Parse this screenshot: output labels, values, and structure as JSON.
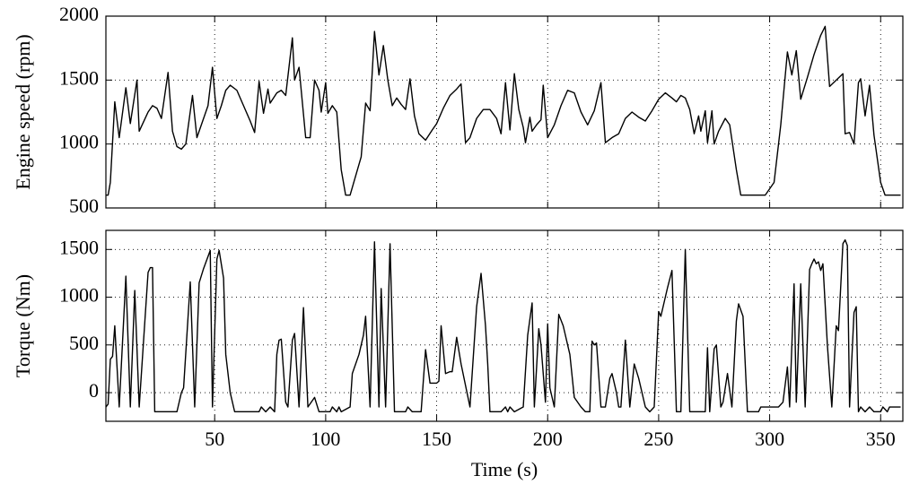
{
  "chart_data": [
    {
      "type": "line",
      "ylabel": "Engine speed (rpm)",
      "x": [
        1,
        2,
        3,
        5,
        7,
        10,
        12,
        15,
        16,
        20,
        22,
        24,
        26,
        29,
        31,
        33,
        35,
        37,
        40,
        42,
        44,
        47,
        49,
        51,
        53,
        55,
        57,
        60,
        63,
        66,
        68,
        70,
        72,
        74,
        75,
        78,
        80,
        82,
        85,
        86,
        88,
        91,
        93,
        95,
        97,
        98,
        100,
        101,
        103,
        105,
        107,
        109,
        111,
        113,
        116,
        118,
        120,
        122,
        124,
        126,
        128,
        130,
        132,
        134,
        136,
        138,
        140,
        142,
        145,
        148,
        150,
        153,
        156,
        159,
        161,
        163,
        165,
        168,
        171,
        174,
        177,
        179,
        181,
        183,
        185,
        187,
        189,
        190,
        192,
        193,
        195,
        197,
        198,
        200,
        203,
        206,
        209,
        212,
        215,
        218,
        221,
        224,
        226,
        229,
        232,
        235,
        238,
        241,
        244,
        247,
        250,
        253,
        256,
        258,
        260,
        262,
        264,
        266,
        268,
        269,
        271,
        272,
        274,
        275,
        277,
        280,
        282,
        285,
        287,
        292,
        298,
        302,
        305,
        308,
        310,
        312,
        314,
        317,
        320,
        323,
        325,
        327,
        333,
        334,
        336,
        338,
        340,
        341,
        343,
        345,
        347,
        350,
        352,
        359
      ],
      "values": [
        600,
        600,
        700,
        1330,
        1050,
        1440,
        1160,
        1500,
        1100,
        1250,
        1300,
        1280,
        1200,
        1560,
        1100,
        980,
        960,
        1000,
        1380,
        1050,
        1150,
        1300,
        1600,
        1200,
        1300,
        1420,
        1460,
        1420,
        1300,
        1180,
        1090,
        1490,
        1240,
        1430,
        1320,
        1400,
        1420,
        1380,
        1830,
        1500,
        1600,
        1050,
        1050,
        1500,
        1420,
        1250,
        1480,
        1240,
        1300,
        1250,
        800,
        600,
        600,
        720,
        900,
        1320,
        1260,
        1880,
        1540,
        1770,
        1500,
        1300,
        1360,
        1310,
        1270,
        1510,
        1220,
        1080,
        1030,
        1110,
        1160,
        1280,
        1380,
        1430,
        1470,
        1010,
        1050,
        1200,
        1270,
        1270,
        1200,
        1080,
        1480,
        1110,
        1550,
        1270,
        1130,
        1010,
        1210,
        1100,
        1150,
        1190,
        1460,
        1050,
        1150,
        1300,
        1420,
        1400,
        1250,
        1150,
        1260,
        1480,
        1010,
        1050,
        1080,
        1200,
        1250,
        1210,
        1180,
        1260,
        1350,
        1400,
        1360,
        1330,
        1380,
        1360,
        1270,
        1080,
        1220,
        1100,
        1260,
        1010,
        1260,
        1000,
        1100,
        1200,
        1150,
        800,
        600,
        600,
        600,
        700,
        1150,
        1720,
        1540,
        1730,
        1350,
        1520,
        1700,
        1850,
        1920,
        1450,
        1550,
        1080,
        1090,
        1000,
        1480,
        1510,
        1220,
        1460,
        1070,
        700,
        600,
        600
      ],
      "color": "#000000",
      "xlim": [
        1,
        360
      ],
      "xticks": [
        50,
        100,
        150,
        200,
        250,
        300,
        350
      ],
      "show_xticklabels": false,
      "ylim": [
        500,
        2000
      ],
      "yticks": [
        500,
        1000,
        1500,
        2000
      ],
      "grid": true
    },
    {
      "type": "line",
      "ylabel": "Torque (Nm)",
      "xlabel": "Time (s)",
      "x": [
        1,
        2,
        3,
        4,
        5,
        7,
        10,
        12,
        14,
        16,
        20,
        21,
        22,
        23,
        33,
        35,
        36,
        39,
        41,
        43,
        45,
        48,
        49,
        51,
        52,
        54,
        55,
        57,
        59,
        70,
        71,
        73,
        75,
        77,
        78,
        79,
        80,
        82,
        83,
        85,
        86,
        88,
        90,
        92,
        95,
        97,
        102,
        103,
        105,
        106,
        107,
        111,
        112,
        115,
        117,
        118,
        120,
        122,
        124,
        125,
        127,
        129,
        131,
        136,
        137,
        139,
        143,
        145,
        147,
        150,
        151,
        152,
        154,
        156,
        157,
        159,
        161,
        165,
        168,
        170,
        172,
        173,
        174,
        179,
        181,
        182,
        183,
        185,
        189,
        191,
        193,
        194,
        196,
        197,
        199,
        200,
        201,
        203,
        205,
        207,
        208,
        210,
        212,
        215,
        217,
        219,
        220,
        221,
        222,
        224,
        226,
        228,
        229,
        231,
        232,
        233,
        235,
        237,
        239,
        241,
        244,
        246,
        248,
        250,
        251,
        254,
        256,
        258,
        260,
        262,
        264,
        271,
        272,
        273,
        275,
        276,
        278,
        279,
        281,
        283,
        285,
        286,
        288,
        290,
        295,
        296,
        304,
        306,
        308,
        309,
        311,
        312,
        314,
        316,
        318,
        319,
        320,
        321,
        322,
        323,
        324,
        326,
        328,
        330,
        331,
        333,
        334,
        335,
        336,
        338,
        339,
        340,
        341,
        343,
        345,
        347,
        350,
        351,
        353,
        354,
        359
      ],
      "values": [
        -150,
        -120,
        350,
        380,
        700,
        -150,
        1220,
        -150,
        1070,
        -150,
        1260,
        1310,
        1310,
        -200,
        -200,
        0,
        50,
        1160,
        -150,
        1150,
        1300,
        1490,
        -150,
        1400,
        1490,
        1200,
        400,
        0,
        -200,
        -200,
        -150,
        -200,
        -150,
        -200,
        400,
        550,
        560,
        -100,
        -150,
        550,
        620,
        -150,
        890,
        -150,
        -50,
        -200,
        -200,
        -150,
        -200,
        -150,
        -200,
        -150,
        200,
        400,
        600,
        800,
        -150,
        1580,
        -150,
        1090,
        -150,
        1560,
        -200,
        -200,
        -150,
        -200,
        -200,
        450,
        100,
        100,
        120,
        700,
        200,
        220,
        220,
        580,
        300,
        -150,
        900,
        1250,
        700,
        300,
        -200,
        -200,
        -150,
        -200,
        -150,
        -200,
        -150,
        600,
        940,
        -150,
        670,
        500,
        -100,
        720,
        50,
        -150,
        820,
        700,
        600,
        400,
        -50,
        -150,
        -200,
        -200,
        540,
        500,
        520,
        -150,
        -150,
        150,
        200,
        0,
        -150,
        -150,
        550,
        -150,
        300,
        150,
        -150,
        -200,
        -150,
        850,
        800,
        1100,
        1280,
        -200,
        -200,
        1500,
        -200,
        -200,
        470,
        -200,
        460,
        500,
        -150,
        -100,
        200,
        -150,
        750,
        930,
        800,
        -200,
        -200,
        -150,
        -150,
        -100,
        270,
        -150,
        1140,
        -100,
        1140,
        -150,
        1290,
        1350,
        1400,
        1350,
        1370,
        1280,
        1350,
        500,
        -150,
        700,
        650,
        1560,
        1600,
        1540,
        -150,
        840,
        900,
        -200,
        -150,
        -200,
        -150,
        -200,
        -200,
        -150,
        -200,
        -150,
        -150
      ],
      "color": "#000000",
      "xlim": [
        1,
        360
      ],
      "xticks": [
        50,
        100,
        150,
        200,
        250,
        300,
        350
      ],
      "show_xticklabels": true,
      "ylim": [
        -300,
        1700
      ],
      "yticks": [
        0,
        500,
        1000,
        1500
      ],
      "grid": true
    }
  ]
}
